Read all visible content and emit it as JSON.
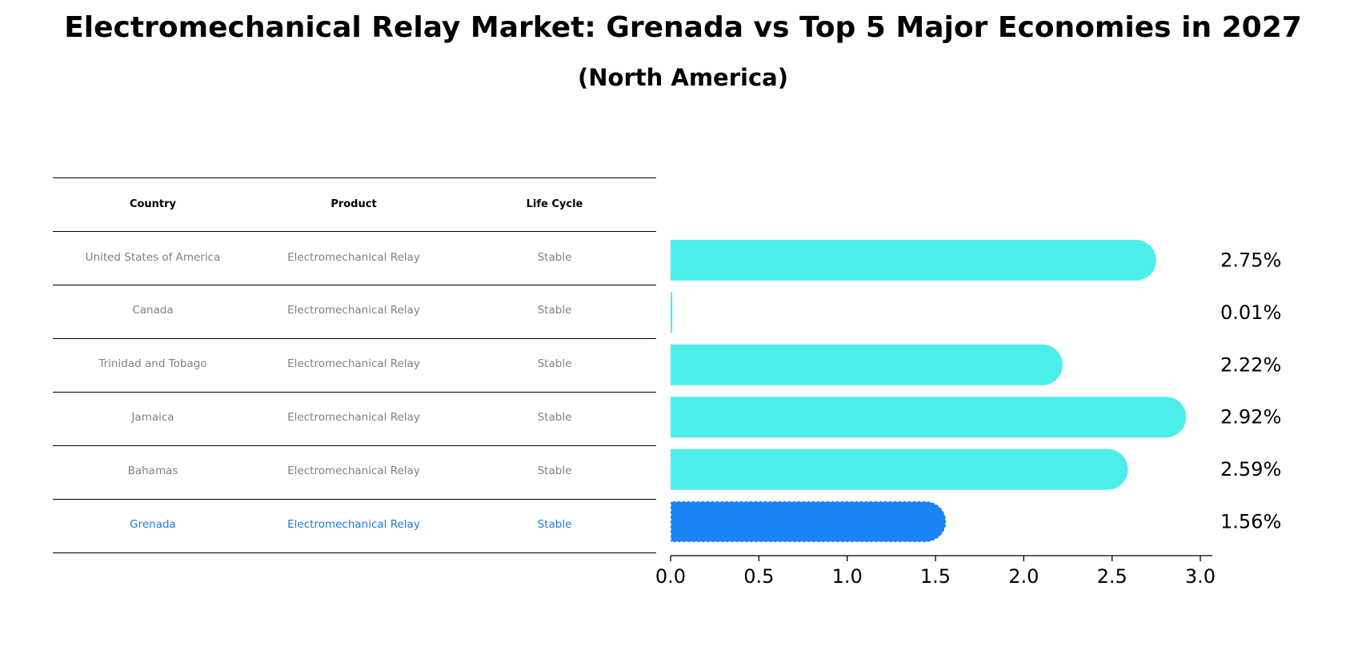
{
  "chart_data": {
    "type": "bar",
    "orientation": "horizontal",
    "title": "Electromechanical Relay Market: Grenada vs Top 5 Major Economies in 2027",
    "subtitle": "(North America)",
    "categories": [
      "United States of America",
      "Canada",
      "Trinidad and Tobago",
      "Jamaica",
      "Bahamas",
      "Grenada"
    ],
    "values": [
      2.75,
      0.01,
      2.22,
      2.92,
      2.59,
      1.56
    ],
    "value_labels": [
      "2.75%",
      "0.01%",
      "2.22%",
      "2.92%",
      "2.59%",
      "1.56%"
    ],
    "highlight": "Grenada",
    "xlim": [
      0,
      3.0
    ],
    "xticks": [
      0.0,
      0.5,
      1.0,
      1.5,
      2.0,
      2.5,
      3.0
    ],
    "xtick_labels": [
      "0.0",
      "0.5",
      "1.0",
      "1.5",
      "2.0",
      "2.5",
      "3.0"
    ],
    "xlabel": "",
    "ylabel": "",
    "grid": false,
    "colors": {
      "bar": "#4deeea",
      "highlight": "#1a84f4"
    }
  },
  "table": {
    "headers": [
      "Country",
      "Product",
      "Life Cycle"
    ],
    "rows": [
      [
        "United States of America",
        "Electromechanical Relay",
        "Stable"
      ],
      [
        "Canada",
        "Electromechanical Relay",
        "Stable"
      ],
      [
        "Trinidad and Tobago",
        "Electromechanical Relay",
        "Stable"
      ],
      [
        "Jamaica",
        "Electromechanical Relay",
        "Stable"
      ],
      [
        "Bahamas",
        "Electromechanical Relay",
        "Stable"
      ],
      [
        "Grenada",
        "Electromechanical Relay",
        "Stable"
      ]
    ],
    "highlight_row": 5,
    "colors": {
      "text": "#808080",
      "highlight": "#1a7bd8"
    }
  }
}
